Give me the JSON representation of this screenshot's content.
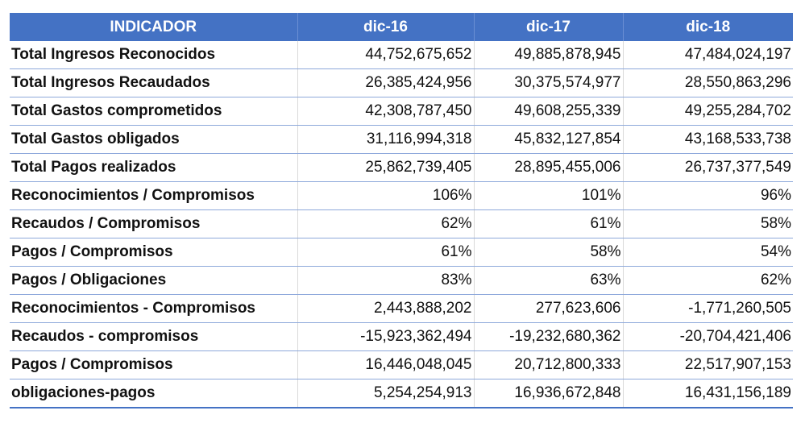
{
  "table": {
    "headers": [
      "INDICADOR",
      "dic-16",
      "dic-17",
      "dic-18"
    ],
    "rows": [
      [
        "Total Ingresos Reconocidos",
        "44,752,675,652",
        "49,885,878,945",
        "47,484,024,197"
      ],
      [
        "Total Ingresos Recaudados",
        "26,385,424,956",
        "30,375,574,977",
        "28,550,863,296"
      ],
      [
        "Total Gastos comprometidos",
        "42,308,787,450",
        "49,608,255,339",
        "49,255,284,702"
      ],
      [
        "Total Gastos obligados",
        "31,116,994,318",
        "45,832,127,854",
        "43,168,533,738"
      ],
      [
        "Total Pagos realizados",
        "25,862,739,405",
        "28,895,455,006",
        "26,737,377,549"
      ],
      [
        "Reconocimientos / Compromisos",
        "106%",
        "101%",
        "96%"
      ],
      [
        "Recaudos / Compromisos",
        "62%",
        "61%",
        "58%"
      ],
      [
        "Pagos / Compromisos",
        "61%",
        "58%",
        "54%"
      ],
      [
        "Pagos / Obligaciones",
        "83%",
        "63%",
        "62%"
      ],
      [
        "Reconocimientos - Compromisos",
        "2,443,888,202",
        "277,623,606",
        "-1,771,260,505"
      ],
      [
        "Recaudos - compromisos",
        "-15,923,362,494",
        "-19,232,680,362",
        "-20,704,421,406"
      ],
      [
        "Pagos / Compromisos",
        "16,446,048,045",
        "20,712,800,333",
        "22,517,907,153"
      ],
      [
        "obligaciones-pagos",
        "5,254,254,913",
        "16,936,672,848",
        "16,431,156,189"
      ]
    ]
  },
  "colors": {
    "header_bg": "#4472c4",
    "header_text": "#ffffff",
    "row_border": "#8ea9db"
  }
}
